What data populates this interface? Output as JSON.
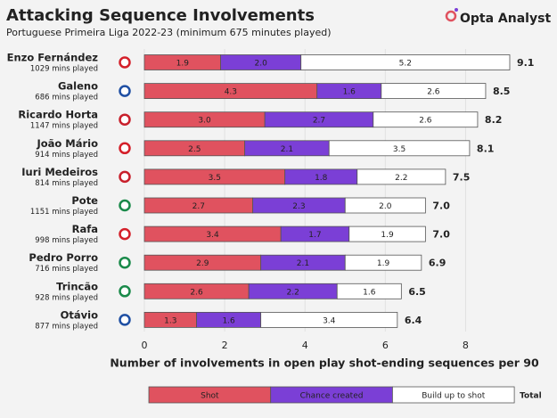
{
  "chart_data": {
    "type": "stacked_barh",
    "title": "Attacking Sequence Involvements",
    "subtitle": "Portuguese Primeira Liga 2022-23 (minimum 675 minutes played)",
    "brand": "Opta Analyst",
    "categories": [
      "Enzo Fernández",
      "Galeno",
      "Ricardo Horta",
      "João Mário",
      "Iuri Medeiros",
      "Pote",
      "Rafa",
      "Pedro Porro",
      "Trincão",
      "Otávio"
    ],
    "category_notes": [
      "1029 mins played",
      "686 mins played",
      "1147 mins played",
      "914 mins played",
      "814 mins played",
      "1151 mins played",
      "998 mins played",
      "716 mins played",
      "928 mins played",
      "877 mins played"
    ],
    "series": [
      {
        "name": "Shot",
        "color": "#e0525f",
        "values": [
          1.9,
          4.3,
          3.0,
          2.5,
          3.5,
          2.7,
          3.4,
          2.9,
          2.6,
          1.3
        ],
        "value_labels": [
          "1.9",
          "4.3",
          "3.0",
          "2.5",
          "3.5",
          "2.7",
          "3.4",
          "2.9",
          "2.6",
          "1.3"
        ]
      },
      {
        "name": "Chance created",
        "color": "#7b3fd6",
        "values": [
          2.0,
          1.6,
          2.7,
          2.1,
          1.8,
          2.3,
          1.7,
          2.1,
          2.2,
          1.6
        ],
        "value_labels": [
          "2.0",
          "1.6",
          "2.7",
          "2.1",
          "1.8",
          "2.3",
          "1.7",
          "2.1",
          "2.2",
          "1.6"
        ]
      },
      {
        "name": "Build up to shot",
        "color": "#ffffff",
        "values": [
          5.2,
          2.6,
          2.6,
          3.5,
          2.2,
          2.0,
          1.9,
          1.9,
          1.6,
          3.4
        ],
        "value_labels": [
          "5.2",
          "2.6",
          "2.6",
          "3.5",
          "2.2",
          "2.0",
          "1.9",
          "1.9",
          "1.6",
          "3.4"
        ]
      }
    ],
    "totals": {
      "name": "Total",
      "values": [
        9.1,
        8.5,
        8.2,
        8.1,
        7.5,
        7.0,
        7.0,
        6.9,
        6.5,
        6.4
      ],
      "value_labels": [
        "9.1",
        "8.5",
        "8.2",
        "8.1",
        "7.5",
        "7.0",
        "7.0",
        "6.9",
        "6.5",
        "6.4"
      ]
    },
    "xlabel": "Number of involvements in open play shot-ending sequences per 90",
    "xlim": [
      0,
      9.5
    ],
    "xticks": [
      0,
      2,
      4,
      6,
      8
    ],
    "grid": true
  }
}
